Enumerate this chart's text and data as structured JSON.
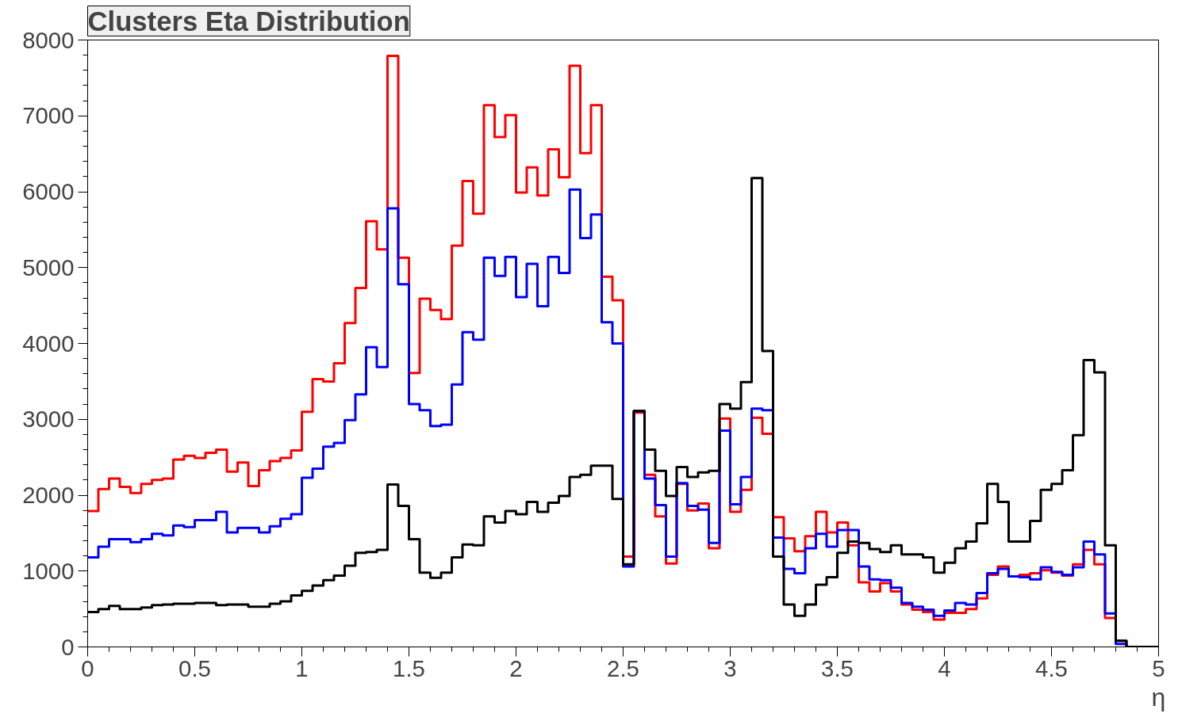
{
  "chart_data": {
    "type": "histogram",
    "title": "Clusters Eta Distribution",
    "xlabel": "η",
    "bins": [
      0,
      0.05,
      0.1,
      0.15,
      0.2,
      0.25,
      0.3,
      0.35,
      0.4,
      0.45,
      0.5,
      0.55,
      0.6,
      0.65,
      0.7,
      0.75,
      0.8,
      0.85,
      0.9,
      0.95,
      1,
      1.05,
      1.1,
      1.15,
      1.2,
      1.25,
      1.3,
      1.35,
      1.4,
      1.45,
      1.5,
      1.55,
      1.6,
      1.65,
      1.7,
      1.75,
      1.8,
      1.85,
      1.9,
      1.95,
      2,
      2.05,
      2.1,
      2.15,
      2.2,
      2.25,
      2.3,
      2.35,
      2.4,
      2.45,
      2.5,
      2.55,
      2.6,
      2.65,
      2.7,
      2.75,
      2.8,
      2.85,
      2.9,
      2.95,
      3,
      3.05,
      3.1,
      3.15,
      3.2,
      3.25,
      3.3,
      3.35,
      3.4,
      3.45,
      3.5,
      3.55,
      3.6,
      3.65,
      3.7,
      3.75,
      3.8,
      3.85,
      3.9,
      3.95,
      4,
      4.05,
      4.1,
      4.15,
      4.2,
      4.25,
      4.3,
      4.35,
      4.4,
      4.45,
      4.5,
      4.55,
      4.6,
      4.65,
      4.7,
      4.75,
      4.8,
      4.85,
      4.9,
      4.95,
      5
    ],
    "series": [
      {
        "color": "#ff0000",
        "values": [
          1790,
          2080,
          2220,
          2110,
          2030,
          2150,
          2200,
          2220,
          2470,
          2520,
          2490,
          2560,
          2600,
          2310,
          2430,
          2120,
          2330,
          2450,
          2490,
          2590,
          3100,
          3530,
          3500,
          3740,
          4270,
          4730,
          5610,
          5240,
          7790,
          5130,
          3610,
          4590,
          4440,
          4320,
          5290,
          6140,
          5710,
          7140,
          6720,
          7010,
          5990,
          6320,
          5950,
          6560,
          6190,
          7660,
          6510,
          7140,
          4880,
          4570,
          1190,
          3090,
          2270,
          1720,
          1100,
          2150,
          1800,
          1890,
          1300,
          3010,
          1780,
          2070,
          3020,
          2810,
          1710,
          1430,
          1260,
          1460,
          1780,
          1510,
          1640,
          1340,
          850,
          730,
          840,
          730,
          560,
          490,
          460,
          360,
          450,
          450,
          500,
          640,
          950,
          1060,
          930,
          950,
          970,
          1010,
          980,
          940,
          1090,
          1280,
          1090,
          380,
          80,
          0,
          0,
          0
        ]
      },
      {
        "color": "#0000ff",
        "values": [
          1180,
          1320,
          1420,
          1420,
          1380,
          1420,
          1490,
          1470,
          1600,
          1580,
          1670,
          1670,
          1780,
          1510,
          1570,
          1570,
          1510,
          1590,
          1690,
          1750,
          2230,
          2350,
          2640,
          2690,
          2990,
          3330,
          3950,
          3690,
          5780,
          4780,
          3200,
          3120,
          2910,
          2930,
          3460,
          4150,
          4050,
          5130,
          4890,
          5140,
          4610,
          5050,
          4490,
          5140,
          4930,
          6030,
          5390,
          5700,
          4280,
          4000,
          1060,
          3110,
          2220,
          1870,
          1190,
          2160,
          1860,
          1810,
          1370,
          2850,
          1880,
          2240,
          3140,
          3120,
          1440,
          1030,
          970,
          1300,
          1490,
          1320,
          1540,
          1540,
          1060,
          890,
          880,
          780,
          580,
          530,
          490,
          410,
          480,
          580,
          560,
          710,
          970,
          1030,
          930,
          920,
          890,
          1050,
          990,
          950,
          1050,
          1390,
          1220,
          440,
          40,
          0,
          0,
          0
        ]
      },
      {
        "color": "#000000",
        "values": [
          460,
          500,
          540,
          500,
          500,
          520,
          550,
          560,
          570,
          570,
          580,
          580,
          550,
          560,
          560,
          530,
          530,
          570,
          600,
          680,
          740,
          810,
          880,
          940,
          1070,
          1240,
          1250,
          1280,
          2140,
          1860,
          1420,
          980,
          910,
          980,
          1180,
          1350,
          1340,
          1720,
          1640,
          1790,
          1750,
          1910,
          1780,
          1900,
          1990,
          2240,
          2270,
          2390,
          2390,
          1950,
          1090,
          3110,
          2600,
          2320,
          1990,
          2370,
          2240,
          2300,
          2320,
          3200,
          3140,
          3490,
          6180,
          3900,
          1190,
          560,
          410,
          560,
          820,
          920,
          1240,
          1390,
          1370,
          1290,
          1250,
          1340,
          1220,
          1220,
          1180,
          980,
          1110,
          1300,
          1390,
          1630,
          2150,
          1910,
          1390,
          1390,
          1660,
          2070,
          2150,
          2330,
          2790,
          3780,
          3620,
          1340,
          80,
          0,
          0,
          0
        ]
      }
    ],
    "xlim": [
      0,
      5
    ],
    "ylim": [
      0,
      8000
    ],
    "xticks": [
      0,
      0.5,
      1,
      1.5,
      2,
      2.5,
      3,
      3.5,
      4,
      4.5,
      5
    ],
    "yticks": [
      0,
      1000,
      2000,
      3000,
      4000,
      5000,
      6000,
      7000,
      8000
    ]
  }
}
